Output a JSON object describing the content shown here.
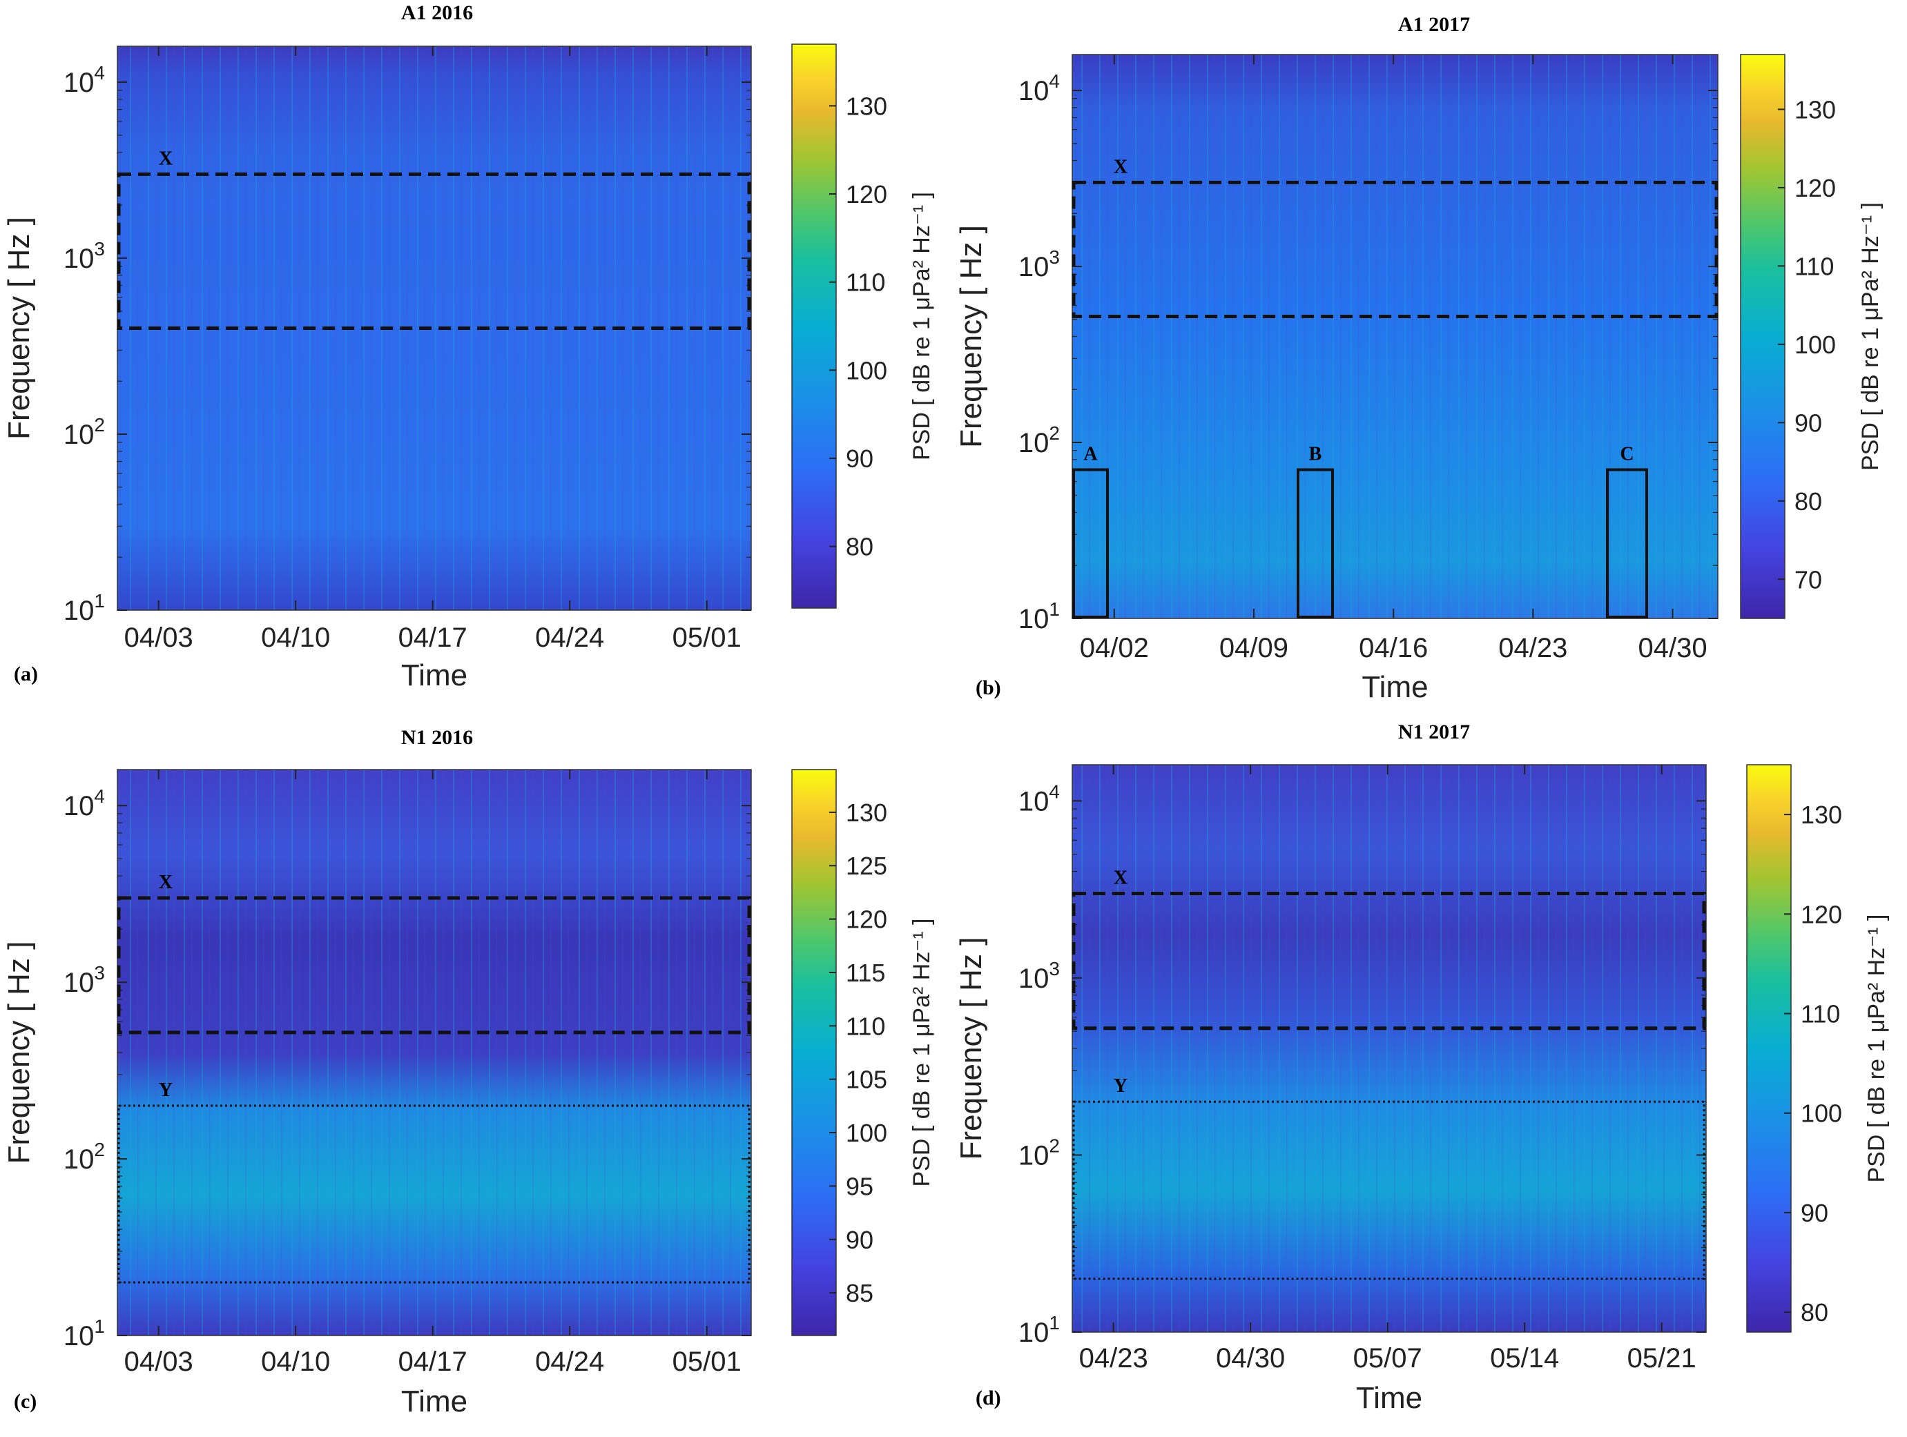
{
  "chart_data": [
    {
      "type": "heatmap",
      "panel_label": "(a)",
      "title": "A1 2016",
      "xlabel": "Time",
      "ylabel": "Frequency [ Hz ]",
      "yscale": "log",
      "ylim": [
        10,
        16000
      ],
      "y_ticks": [
        {
          "base": "10",
          "exp": "1"
        },
        {
          "base": "10",
          "exp": "2"
        },
        {
          "base": "10",
          "exp": "3"
        },
        {
          "base": "10",
          "exp": "4"
        }
      ],
      "x_ticks": [
        "04/03",
        "04/10",
        "04/17",
        "04/24",
        "05/01"
      ],
      "colorbar": {
        "label": "PSD [ dB re 1 μPa² Hz⁻¹ ]",
        "range": [
          73,
          137
        ],
        "ticks": [
          "80",
          "90",
          "100",
          "110",
          "120",
          "130"
        ]
      },
      "regions": [
        {
          "label": "X",
          "style": "dashed",
          "freq_range": [
            400,
            3000
          ]
        }
      ]
    },
    {
      "type": "heatmap",
      "panel_label": "(b)",
      "title": "A1 2017",
      "xlabel": "Time",
      "ylabel": "Frequency [ Hz ]",
      "yscale": "log",
      "ylim": [
        10,
        16000
      ],
      "y_ticks": [
        {
          "base": "10",
          "exp": "1"
        },
        {
          "base": "10",
          "exp": "2"
        },
        {
          "base": "10",
          "exp": "3"
        },
        {
          "base": "10",
          "exp": "4"
        }
      ],
      "x_ticks": [
        "04/02",
        "04/09",
        "04/16",
        "04/23",
        "04/30"
      ],
      "colorbar": {
        "label": "PSD [ dB re 1 μPa² Hz⁻¹ ]",
        "range": [
          65,
          137
        ],
        "ticks": [
          "70",
          "80",
          "90",
          "100",
          "110",
          "120",
          "130"
        ]
      },
      "regions": [
        {
          "label": "X",
          "style": "dashed",
          "freq_range": [
            520,
            3000
          ]
        },
        {
          "label": "A",
          "style": "solid",
          "freq_range": [
            10,
            70
          ]
        },
        {
          "label": "B",
          "style": "solid",
          "freq_range": [
            10,
            70
          ]
        },
        {
          "label": "C",
          "style": "solid",
          "freq_range": [
            10,
            70
          ]
        }
      ]
    },
    {
      "type": "heatmap",
      "panel_label": "(c)",
      "title": "N1 2016",
      "xlabel": "Time",
      "ylabel": "Frequency [ Hz ]",
      "yscale": "log",
      "ylim": [
        10,
        16000
      ],
      "y_ticks": [
        {
          "base": "10",
          "exp": "1"
        },
        {
          "base": "10",
          "exp": "2"
        },
        {
          "base": "10",
          "exp": "3"
        },
        {
          "base": "10",
          "exp": "4"
        }
      ],
      "x_ticks": [
        "04/03",
        "04/10",
        "04/17",
        "04/24",
        "05/01"
      ],
      "colorbar": {
        "label": "PSD [ dB re 1 μPa² Hz⁻¹ ]",
        "range": [
          81,
          134
        ],
        "ticks": [
          "85",
          "90",
          "95",
          "100",
          "105",
          "110",
          "115",
          "120",
          "125",
          "130"
        ]
      },
      "regions": [
        {
          "label": "X",
          "style": "dashed",
          "freq_range": [
            520,
            3000
          ]
        },
        {
          "label": "Y",
          "style": "dotted",
          "freq_range": [
            20,
            200
          ]
        }
      ]
    },
    {
      "type": "heatmap",
      "panel_label": "(d)",
      "title": "N1 2017",
      "xlabel": "Time",
      "ylabel": "Frequency [ Hz ]",
      "yscale": "log",
      "ylim": [
        10,
        16000
      ],
      "y_ticks": [
        {
          "base": "10",
          "exp": "1"
        },
        {
          "base": "10",
          "exp": "2"
        },
        {
          "base": "10",
          "exp": "3"
        },
        {
          "base": "10",
          "exp": "4"
        }
      ],
      "x_ticks": [
        "04/23",
        "04/30",
        "05/07",
        "05/14",
        "05/21"
      ],
      "colorbar": {
        "label": "PSD [ dB re 1 μPa² Hz⁻¹ ]",
        "range": [
          78,
          135
        ],
        "ticks": [
          "80",
          "90",
          "100",
          "110",
          "120",
          "130"
        ]
      },
      "regions": [
        {
          "label": "X",
          "style": "dashed",
          "freq_range": [
            520,
            3000
          ]
        },
        {
          "label": "Y",
          "style": "dotted",
          "freq_range": [
            20,
            200
          ]
        }
      ]
    }
  ]
}
